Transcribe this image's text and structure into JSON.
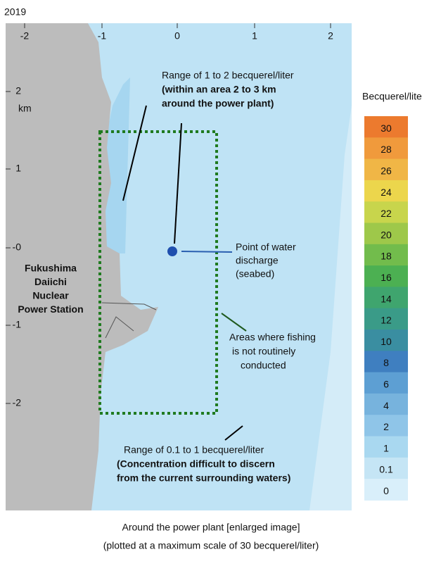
{
  "year": "2019",
  "map": {
    "x_ticks": [
      "-2",
      "-1",
      "0",
      "1",
      "2"
    ],
    "y_ticks": [
      "2",
      "1",
      "-0",
      "-1",
      "-2"
    ],
    "y_unit": "km"
  },
  "annotations": {
    "near_range": [
      "Range of 1 to 2 becquerel/liter",
      "(within an area 2 to 3 km",
      "around the power plant)"
    ],
    "discharge": [
      "Point of water",
      "discharge",
      "(seabed)"
    ],
    "station": [
      "Fukushima",
      "Daiichi",
      "Nuclear",
      "Power Station"
    ],
    "fishing": [
      "Areas where fishing",
      "is not routinely",
      "conducted"
    ],
    "far_range": [
      "Range of 0.1 to 1 becquerel/liter",
      "(Concentration difficult to discern",
      "from the current surrounding waters)"
    ]
  },
  "colorbar": {
    "title": "Becquerel/liter",
    "labels": [
      "30",
      "28",
      "26",
      "24",
      "22",
      "20",
      "18",
      "16",
      "14",
      "12",
      "10",
      "8",
      "6",
      "4",
      "2",
      "1",
      "0.1",
      "0"
    ],
    "colors": [
      "#ec7a2e",
      "#f09a3c",
      "#f0b646",
      "#ecd64c",
      "#c8d54c",
      "#9ec84a",
      "#72bc4c",
      "#4cb052",
      "#3fa56e",
      "#3a9b88",
      "#3a8ea1",
      "#3f7fc0",
      "#5d9fd3",
      "#77b3dd",
      "#8fc5e8",
      "#a9d8f0",
      "#c5e5f5",
      "#d9effa"
    ]
  },
  "caption": [
    "Around the power plant [enlarged image]",
    "(plotted at a maximum scale of 30 becquerel/liter)"
  ]
}
